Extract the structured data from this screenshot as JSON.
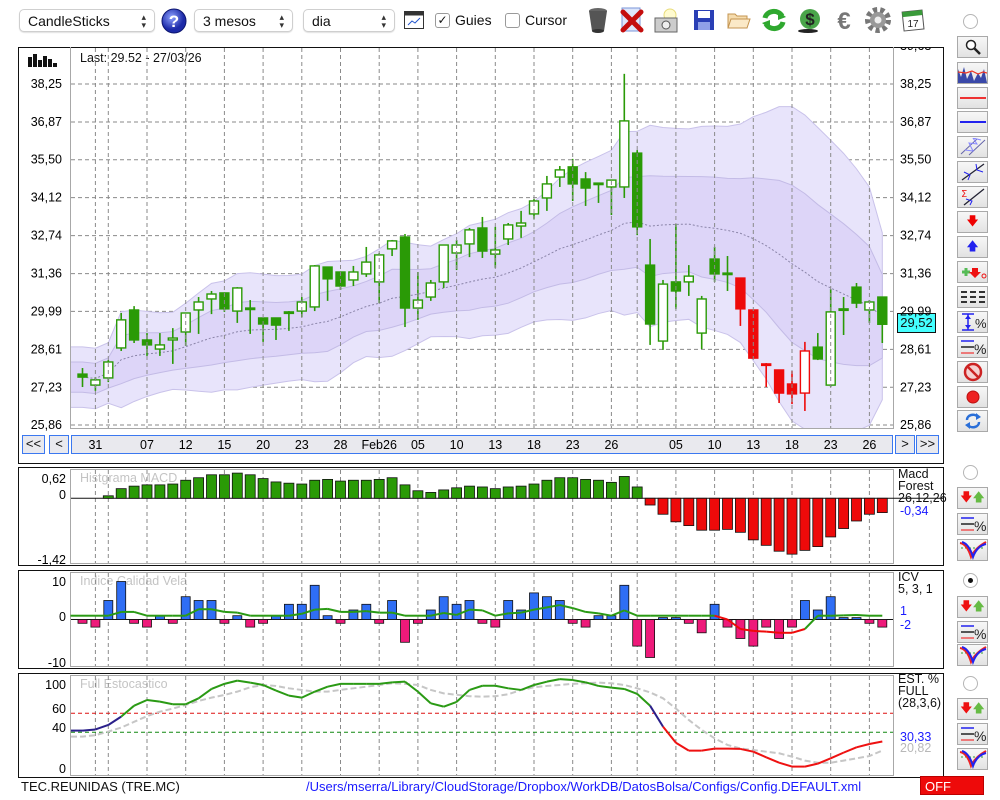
{
  "toolbar": {
    "chart_type": "CandleSticks",
    "period": "3 mesos",
    "interval": "dia",
    "guides_label": "Guies",
    "guides_checked": true,
    "cursor_label": "Cursor",
    "cursor_checked": false,
    "icons": [
      "help-icon",
      "chart-window-icon",
      "trash-icon",
      "delete-icon",
      "camera-icon",
      "save-icon",
      "open-folder-icon",
      "refresh-icon",
      "currency-icon",
      "euro-icon",
      "settings-icon",
      "calendar-icon"
    ],
    "calendar_day": "17"
  },
  "main": {
    "last_info": "Last: 29.52 - 27/03/26",
    "y_ticks": [
      "38,25",
      "36,87",
      "35,50",
      "34,12",
      "32,74",
      "31,36",
      "29,99",
      "28,61",
      "27,23",
      "25,86"
    ],
    "y_top_partial": "39,63",
    "last_price_badge": "29,52",
    "nav": {
      "first": "<<",
      "prev": "<",
      "next": ">",
      "last": ">>"
    }
  },
  "macd": {
    "title": "Histgrama MACD",
    "y_top": "0,62",
    "y_zero": "0",
    "y_bottom": "-1,42",
    "name1": "Macd",
    "name2": "Forest",
    "params": "26,12,26",
    "value": "-0,34"
  },
  "icv": {
    "title": "Indice Calidad Vela",
    "y_top": "10",
    "y_zero": "0",
    "y_bottom": "-10",
    "name": "ICV",
    "params": "5, 3, 1",
    "value_line": "1",
    "value_bar": "-2"
  },
  "stoch": {
    "title": "Full Estocastico",
    "y_100": "100",
    "y_60": "60",
    "y_40": "40",
    "y_0": "0",
    "name1": "EST. %",
    "name2": "FULL",
    "params": "(28,3,6)",
    "value_k": "30,33",
    "value_d": "20,82"
  },
  "footer": {
    "ticker": "TEC.REUNIDAS (TRE.MC)",
    "config_path": "/Users/mserra/Library/CloudStorage/Dropbox/WorkDB/DatosBolsa/Configs/Config.DEFAULT.xml",
    "status": "OFF"
  },
  "colors": {
    "up": "#2a9a06",
    "signal_down": "#ee0a0a",
    "icv_pos": "#2f6ef5",
    "icv_neg": "#ee1a7a",
    "accent_blue": "#1a1aff"
  },
  "chart_data": {
    "type": "candlestick",
    "price_range": [
      25.86,
      39.63
    ],
    "date_labels": [
      {
        "i": 1,
        "label": "31"
      },
      {
        "i": 5,
        "label": "07"
      },
      {
        "i": 8,
        "label": "12"
      },
      {
        "i": 11,
        "label": "15"
      },
      {
        "i": 14,
        "label": "20"
      },
      {
        "i": 17,
        "label": "23"
      },
      {
        "i": 20,
        "label": "28"
      },
      {
        "i": 23,
        "label": "Feb26"
      },
      {
        "i": 26,
        "label": "05"
      },
      {
        "i": 29,
        "label": "10"
      },
      {
        "i": 32,
        "label": "13"
      },
      {
        "i": 35,
        "label": "18"
      },
      {
        "i": 38,
        "label": "23"
      },
      {
        "i": 41,
        "label": "26"
      },
      {
        "i": 46,
        "label": "05"
      },
      {
        "i": 49,
        "label": "10"
      },
      {
        "i": 52,
        "label": "13"
      },
      {
        "i": 55,
        "label": "18"
      },
      {
        "i": 58,
        "label": "23"
      },
      {
        "i": 61,
        "label": "26"
      }
    ],
    "unlabeled_grid": [
      2,
      43
    ],
    "candles_ohlc_signal": [
      [
        27.71,
        27.93,
        27.24,
        27.6,
        "g"
      ],
      [
        27.31,
        27.6,
        27.1,
        27.5,
        "g"
      ],
      [
        27.57,
        28.22,
        27.42,
        28.15,
        "g"
      ],
      [
        28.66,
        29.93,
        28.55,
        29.68,
        "g"
      ],
      [
        30.04,
        30.18,
        28.84,
        28.95,
        "g"
      ],
      [
        28.95,
        29.2,
        28.37,
        28.77,
        "g"
      ],
      [
        28.62,
        29.2,
        28.37,
        28.77,
        "g"
      ],
      [
        28.95,
        29.38,
        28.08,
        29.02,
        "g"
      ],
      [
        29.24,
        29.93,
        28.73,
        29.93,
        "g"
      ],
      [
        30.04,
        30.51,
        29.17,
        30.33,
        "g"
      ],
      [
        30.44,
        30.73,
        29.89,
        30.62,
        "g"
      ],
      [
        30.66,
        30.66,
        29.97,
        30.08,
        "g"
      ],
      [
        30.0,
        30.87,
        29.57,
        30.84,
        "g"
      ],
      [
        30.11,
        30.4,
        29.17,
        30.11,
        "g"
      ],
      [
        29.75,
        29.75,
        28.88,
        29.53,
        "g"
      ],
      [
        29.75,
        29.75,
        28.95,
        29.49,
        "g"
      ],
      [
        29.97,
        30.0,
        29.28,
        29.97,
        "g"
      ],
      [
        30.0,
        30.51,
        29.78,
        30.33,
        "g"
      ],
      [
        30.15,
        31.67,
        30.0,
        31.64,
        "g"
      ],
      [
        31.6,
        31.6,
        30.37,
        31.17,
        "g"
      ],
      [
        31.42,
        31.42,
        30.77,
        30.91,
        "g"
      ],
      [
        31.13,
        31.64,
        30.91,
        31.42,
        "g"
      ],
      [
        31.35,
        32.33,
        31.24,
        31.78,
        "g"
      ],
      [
        31.06,
        32.11,
        30.29,
        32.04,
        "g"
      ],
      [
        32.26,
        32.58,
        32.0,
        32.55,
        "g"
      ],
      [
        32.69,
        32.8,
        29.42,
        30.11,
        "g"
      ],
      [
        30.11,
        31.42,
        29.68,
        30.4,
        "g"
      ],
      [
        30.51,
        31.13,
        30.37,
        31.02,
        "g"
      ],
      [
        31.06,
        32.4,
        30.84,
        32.4,
        "g"
      ],
      [
        32.11,
        32.58,
        31.49,
        32.4,
        "g"
      ],
      [
        32.44,
        33.02,
        31.96,
        32.95,
        "g"
      ],
      [
        33.02,
        33.42,
        31.93,
        32.18,
        "g"
      ],
      [
        32.07,
        33.06,
        31.57,
        32.22,
        "g"
      ],
      [
        32.62,
        33.2,
        32.4,
        33.13,
        "g"
      ],
      [
        33.09,
        33.64,
        32.66,
        33.2,
        "g"
      ],
      [
        33.53,
        34.07,
        33.35,
        34.0,
        "g"
      ],
      [
        34.11,
        34.91,
        33.64,
        34.62,
        "g"
      ],
      [
        34.87,
        35.27,
        34.51,
        35.13,
        "g"
      ],
      [
        35.24,
        35.53,
        34.0,
        34.62,
        "g"
      ],
      [
        34.8,
        35.05,
        33.82,
        34.47,
        "g"
      ],
      [
        34.65,
        34.65,
        33.93,
        34.65,
        "g"
      ],
      [
        34.51,
        34.76,
        33.49,
        34.76,
        "g"
      ],
      [
        34.51,
        38.62,
        34.11,
        36.91,
        "g"
      ],
      [
        35.74,
        35.85,
        32.76,
        33.06,
        "g"
      ],
      [
        31.67,
        32.62,
        28.77,
        29.53,
        "g"
      ],
      [
        28.91,
        31.13,
        28.59,
        30.98,
        "g"
      ],
      [
        31.06,
        33.16,
        30.08,
        30.73,
        "g"
      ],
      [
        31.06,
        31.67,
        30.55,
        31.27,
        "g"
      ],
      [
        29.2,
        30.55,
        28.62,
        30.44,
        "g"
      ],
      [
        31.89,
        32.33,
        31.06,
        31.35,
        "g"
      ],
      [
        31.38,
        32.0,
        30.73,
        31.38,
        "g"
      ],
      [
        31.2,
        31.2,
        29.46,
        30.08,
        "r"
      ],
      [
        30.04,
        30.04,
        28.26,
        28.29,
        "r"
      ],
      [
        28.08,
        28.11,
        27.24,
        28.08,
        "r"
      ],
      [
        27.86,
        27.86,
        26.66,
        27.02,
        "r"
      ],
      [
        27.35,
        27.82,
        26.62,
        26.99,
        "r"
      ],
      [
        27.02,
        28.88,
        26.37,
        28.55,
        "r"
      ],
      [
        28.69,
        29.2,
        28.22,
        28.26,
        "g"
      ],
      [
        27.31,
        30.8,
        27.24,
        29.97,
        "g"
      ],
      [
        30.08,
        30.51,
        29.13,
        30.08,
        "g"
      ],
      [
        30.87,
        31.02,
        30.11,
        30.29,
        "g"
      ],
      [
        30.04,
        30.4,
        29.57,
        30.33,
        "g"
      ],
      [
        30.51,
        30.51,
        28.84,
        29.52,
        "g"
      ]
    ],
    "macd_histogram": [
      null,
      null,
      0.06,
      0.23,
      0.29,
      0.32,
      0.32,
      0.34,
      0.43,
      0.49,
      0.56,
      0.56,
      0.6,
      0.56,
      0.47,
      0.39,
      0.36,
      0.34,
      0.43,
      0.45,
      0.41,
      0.43,
      0.43,
      0.45,
      0.49,
      0.32,
      0.18,
      0.14,
      0.2,
      0.25,
      0.29,
      0.27,
      0.23,
      0.27,
      0.29,
      0.34,
      0.43,
      0.49,
      0.49,
      0.45,
      0.43,
      0.38,
      0.52,
      0.27,
      -0.16,
      -0.38,
      -0.56,
      -0.65,
      -0.76,
      -0.76,
      -0.74,
      -0.81,
      -0.99,
      -1.12,
      -1.26,
      -1.33,
      -1.24,
      -1.15,
      -0.92,
      -0.72,
      -0.54,
      -0.38,
      -0.34
    ],
    "icv_bars": [
      -1,
      -2,
      5,
      10,
      -1,
      -2,
      1,
      -1,
      6,
      5,
      5,
      -1,
      1,
      -2,
      -1,
      1,
      4,
      4,
      9,
      1,
      -1,
      2.5,
      4,
      -1,
      5,
      -6,
      -1,
      2.5,
      6,
      4,
      5,
      -1,
      -2,
      5,
      2.5,
      7,
      6,
      5,
      -1,
      -2,
      1,
      1,
      9,
      -7,
      -10,
      0.5,
      0.5,
      -1,
      -3.5,
      4,
      -2,
      -5,
      -7,
      -2,
      -5,
      -2,
      5,
      2.5,
      6,
      0.5,
      0.5,
      -1,
      -2
    ],
    "icv_line": [
      1,
      1,
      1,
      2,
      2,
      1,
      1,
      1,
      1,
      2.7,
      2.7,
      2,
      1.8,
      1,
      1,
      1,
      1,
      1.5,
      2.6,
      2.8,
      2,
      2,
      2.2,
      1.8,
      1.8,
      1,
      1,
      1,
      1.7,
      1.2,
      2.6,
      2.4,
      1,
      1.6,
      1.8,
      2.6,
      3.2,
      3.8,
      3,
      2,
      1.6,
      1,
      2.4,
      1,
      1,
      1,
      1,
      1,
      1,
      1,
      0,
      -2.5,
      -3,
      -3.2,
      -3.5,
      -3.5,
      -2.5,
      1,
      1,
      1.1,
      1.2,
      1,
      1
    ],
    "stoch_k": [
      41.8,
      43,
      47.7,
      56.5,
      68,
      74,
      72.3,
      69.5,
      69.5,
      75.8,
      85.6,
      91,
      94.4,
      92.3,
      89.8,
      83.9,
      78.6,
      76.5,
      82.8,
      88,
      91,
      91,
      91,
      91,
      92.6,
      93.3,
      82.8,
      70.5,
      67,
      72,
      84.6,
      89,
      89,
      86.3,
      84.6,
      89.8,
      93.3,
      96,
      95,
      92.6,
      88.8,
      87,
      85.6,
      80.4,
      68,
      46,
      29,
      20.7,
      20.7,
      22.8,
      22.8,
      22.5,
      19.6,
      13.7,
      8,
      3.9,
      3.9,
      7,
      12.6,
      18.6,
      24.2,
      27.7,
      30.33
    ],
    "stoch_d": [
      35.4,
      37,
      40.7,
      45,
      51,
      57,
      61.7,
      65,
      68.8,
      73,
      76.5,
      79.3,
      82.8,
      87.4,
      89.8,
      88.8,
      86.3,
      84.6,
      82.8,
      82.8,
      84.6,
      86.3,
      88,
      89.8,
      91.6,
      91,
      89.8,
      84.6,
      81,
      79.5,
      78,
      77.5,
      78,
      80,
      84.6,
      87.4,
      88.8,
      89.8,
      91,
      91.6,
      92.3,
      91.6,
      89.8,
      86.3,
      82,
      75.8,
      65,
      53,
      42.5,
      33.7,
      26.7,
      23,
      21.4,
      19.6,
      17.9,
      14.4,
      10.2,
      8,
      8,
      10.2,
      12.6,
      15,
      20.82
    ],
    "stoch_levels": [
      60,
      40
    ]
  }
}
